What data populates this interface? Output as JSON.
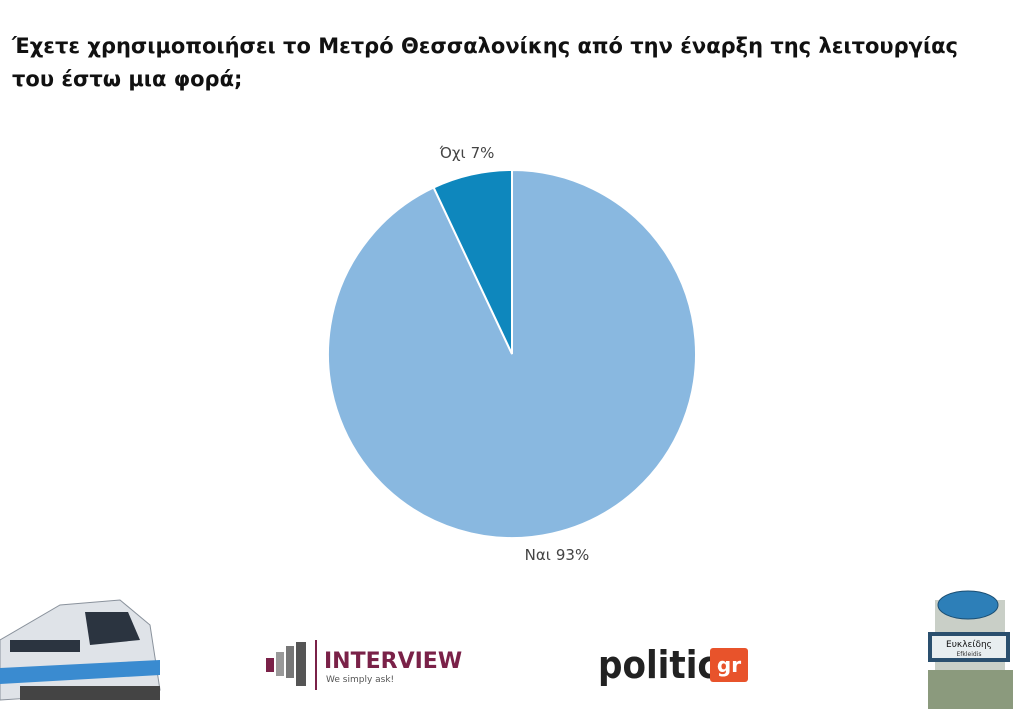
{
  "chart_data": {
    "type": "pie",
    "title": "Έχετε χρησιμοποιήσει το Μετρό Θεσσαλονίκης από την έναρξη της λειτουργίας του έστω μια φορά;",
    "categories": [
      "Ναι",
      "Όχι"
    ],
    "values": [
      93,
      7
    ],
    "value_labels": [
      "93%",
      "7%"
    ],
    "colors": [
      "#89b8e0",
      "#0e87bd"
    ]
  },
  "footer": {
    "interview_logo": "INTERVIEW",
    "interview_tagline": "We simply ask!",
    "politic_logo": "politic",
    "politic_suffix": "gr",
    "station_name": "Ευκλείδης",
    "station_latin": "Efkleidis"
  }
}
